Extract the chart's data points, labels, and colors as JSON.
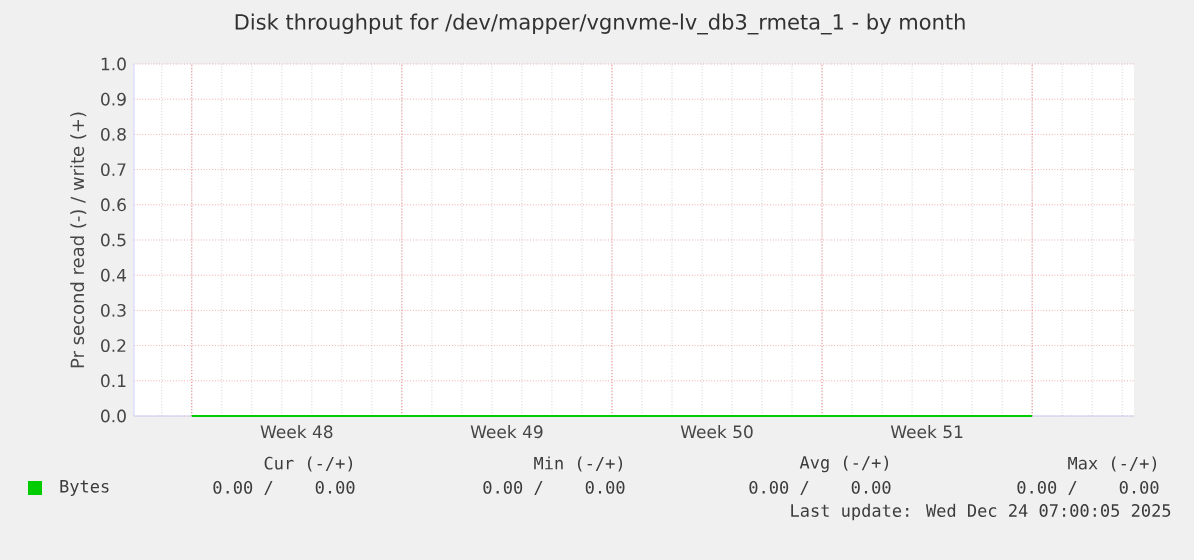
{
  "chart_data": {
    "type": "line",
    "title": "Disk throughput for /dev/mapper/vgnvme-lv_db3_rmeta_1 - by month",
    "ylabel": "Pr second read (-) / write (+)",
    "categories": [
      null,
      "Week 48",
      null,
      "Week 49",
      null,
      "Week 50",
      null,
      "Week 51",
      null
    ],
    "series": [
      {
        "name": "Bytes",
        "color": "#00cc00",
        "values": [
          0,
          0,
          0,
          0,
          0,
          0,
          0,
          0,
          0
        ]
      }
    ],
    "ylim": [
      0,
      1
    ],
    "yticks": [
      {
        "value": 0,
        "label": "0.0"
      },
      0.1,
      0.2,
      0.3,
      0.4,
      0.5,
      0.6,
      0.7,
      0.8,
      0.9,
      {
        "value": 1,
        "label": "1.0"
      }
    ],
    "grid": true,
    "legend": "bottom",
    "annotations": [
      "Cur (-/+)",
      "Min (-/+)",
      "Avg (-/+)",
      "Max (-/+)",
      "0.00 /    0.00",
      "0.00 /    0.00",
      "0.00 /    0.00",
      "0.00 /    0.00",
      "Last update: Wed Dec 24 07:00:05 2025"
    ]
  }
}
